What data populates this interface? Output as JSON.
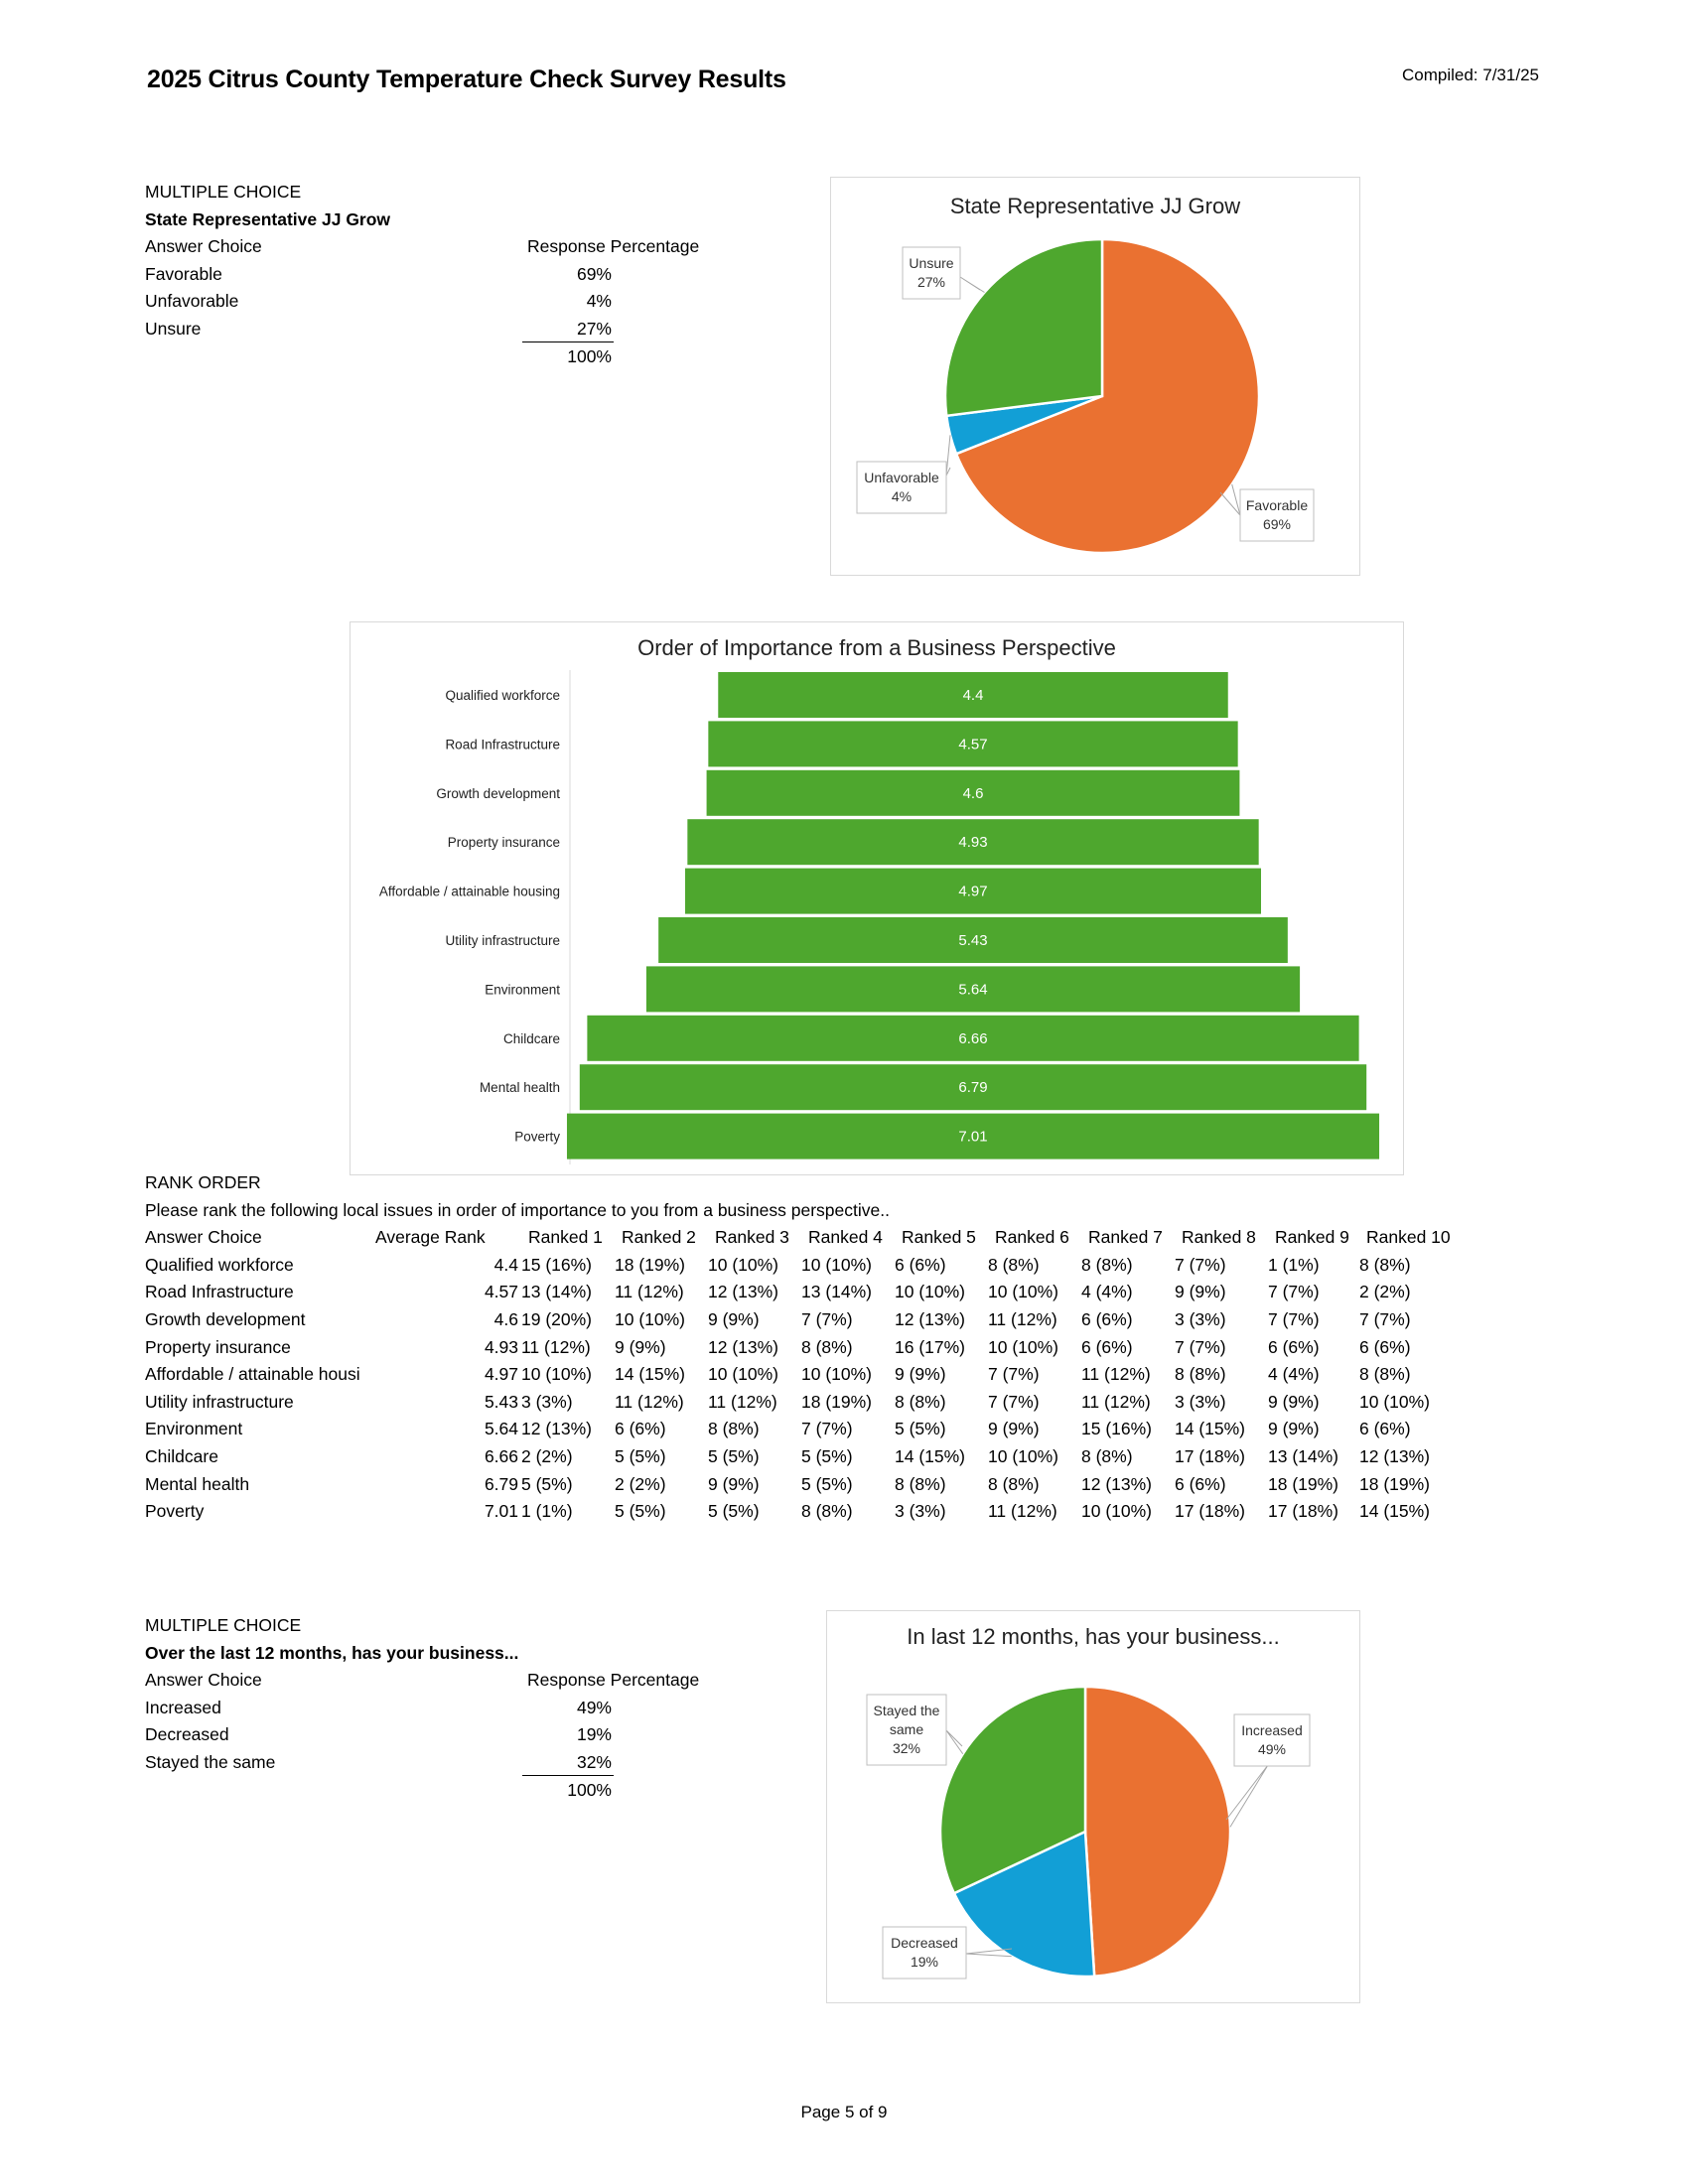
{
  "header": {
    "title": "2025 Citrus County Temperature Check Survey Results",
    "compiled": "Compiled: 7/31/25"
  },
  "section1": {
    "type_label": "MULTIPLE CHOICE",
    "question": "State Representative JJ Grow",
    "col_answer": "Answer Choice",
    "col_response": "Response Percentage",
    "rows": [
      {
        "label": "Favorable",
        "pct": "69%"
      },
      {
        "label": "Unfavorable",
        "pct": "4%"
      },
      {
        "label": "Unsure",
        "pct": "27%"
      }
    ],
    "total": "100%"
  },
  "section2": {
    "type_label": "RANK ORDER",
    "question": "Please rank the following local issues in order of importance to you from a business perspective..",
    "col_answer": "Answer Choice",
    "col_avg": "Average Rank",
    "rank_headers": [
      "Ranked 1",
      "Ranked 2",
      "Ranked 3",
      "Ranked 4",
      "Ranked 5",
      "Ranked 6",
      "Ranked 7",
      "Ranked 8",
      "Ranked 9",
      "Ranked 10"
    ],
    "rows": [
      {
        "label": "Qualified workforce",
        "avg": "4.4",
        "ranks": [
          "15 (16%)",
          "18 (19%)",
          "10 (10%)",
          "10 (10%)",
          "6 (6%)",
          "8 (8%)",
          "8 (8%)",
          "7 (7%)",
          "1 (1%)",
          "8 (8%)"
        ]
      },
      {
        "label": "Road Infrastructure",
        "avg": "4.57",
        "ranks": [
          "13 (14%)",
          "11 (12%)",
          "12 (13%)",
          "13 (14%)",
          "10 (10%)",
          "10 (10%)",
          "4 (4%)",
          "9 (9%)",
          "7 (7%)",
          "2 (2%)"
        ]
      },
      {
        "label": "Growth development",
        "avg": "4.6",
        "ranks": [
          "19 (20%)",
          "10 (10%)",
          "9 (9%)",
          "7 (7%)",
          "12 (13%)",
          "11 (12%)",
          "6 (6%)",
          "3 (3%)",
          "7 (7%)",
          "7 (7%)"
        ]
      },
      {
        "label": "Property insurance",
        "avg": "4.93",
        "ranks": [
          "11 (12%)",
          "9 (9%)",
          "12 (13%)",
          "8 (8%)",
          "16 (17%)",
          "10 (10%)",
          "6 (6%)",
          "7 (7%)",
          "6 (6%)",
          "6 (6%)"
        ]
      },
      {
        "label": "Affordable / attainable housi",
        "avg": "4.97",
        "ranks": [
          "10 (10%)",
          "14 (15%)",
          "10 (10%)",
          "10 (10%)",
          "9 (9%)",
          "7 (7%)",
          "11 (12%)",
          "8 (8%)",
          "4 (4%)",
          "8 (8%)"
        ]
      },
      {
        "label": "Utility infrastructure",
        "avg": "5.43",
        "ranks": [
          "3 (3%)",
          "11 (12%)",
          "11 (12%)",
          "18 (19%)",
          "8 (8%)",
          "7 (7%)",
          "11 (12%)",
          "3 (3%)",
          "9 (9%)",
          "10 (10%)"
        ]
      },
      {
        "label": "Environment",
        "avg": "5.64",
        "ranks": [
          "12 (13%)",
          "6 (6%)",
          "8 (8%)",
          "7 (7%)",
          "5 (5%)",
          "9 (9%)",
          "15 (16%)",
          "14 (15%)",
          "9 (9%)",
          "6 (6%)"
        ]
      },
      {
        "label": "Childcare",
        "avg": "6.66",
        "ranks": [
          "2 (2%)",
          "5 (5%)",
          "5 (5%)",
          "5 (5%)",
          "14 (15%)",
          "10 (10%)",
          "8 (8%)",
          "17 (18%)",
          "13 (14%)",
          "12 (13%)"
        ]
      },
      {
        "label": "Mental health",
        "avg": "6.79",
        "ranks": [
          "5 (5%)",
          "2 (2%)",
          "9 (9%)",
          "5 (5%)",
          "8 (8%)",
          "8 (8%)",
          "12 (13%)",
          "6 (6%)",
          "18 (19%)",
          "18 (19%)"
        ]
      },
      {
        "label": "Poverty",
        "avg": "7.01",
        "ranks": [
          "1 (1%)",
          "5 (5%)",
          "5 (5%)",
          "8 (8%)",
          "3 (3%)",
          "11 (12%)",
          "10 (10%)",
          "17 (18%)",
          "17 (18%)",
          "14 (15%)"
        ]
      }
    ]
  },
  "section3": {
    "type_label": "MULTIPLE CHOICE",
    "question": "Over the last 12 months, has your business...",
    "col_answer": "Answer Choice",
    "col_response": "Response Percentage",
    "rows": [
      {
        "label": "Increased",
        "pct": "49%"
      },
      {
        "label": "Decreased",
        "pct": "19%"
      },
      {
        "label": "Stayed the same",
        "pct": "32%"
      }
    ],
    "total": "100%"
  },
  "footer": {
    "page": "Page 5 of 9"
  },
  "colors": {
    "orange": "#ea7131",
    "blue": "#129fd6",
    "green": "#4ea72e"
  },
  "chart_data": [
    {
      "type": "pie",
      "title": "State Representative JJ Grow",
      "labels": [
        "Favorable",
        "Unfavorable",
        "Unsure"
      ],
      "values": [
        69,
        4,
        27
      ],
      "data_labels": [
        "69%",
        "4%",
        "27%"
      ],
      "colors": [
        "#ea7131",
        "#129fd6",
        "#4ea72e"
      ]
    },
    {
      "type": "bar",
      "orientation": "horizontal-funnel",
      "title": "Order of Importance from a Business Perspective",
      "categories": [
        "Qualified workforce",
        "Road Infrastructure",
        "Growth development",
        "Property insurance",
        "Affordable / attainable housing",
        "Utility infrastructure",
        "Environment",
        "Childcare",
        "Mental health",
        "Poverty"
      ],
      "values": [
        4.4,
        4.57,
        4.6,
        4.93,
        4.97,
        5.43,
        5.64,
        6.66,
        6.79,
        7.01
      ],
      "color": "#4ea72e"
    },
    {
      "type": "pie",
      "title": "In last 12 months, has your business...",
      "labels": [
        "Increased",
        "Decreased",
        "Stayed the same"
      ],
      "values": [
        49,
        19,
        32
      ],
      "data_labels": [
        "49%",
        "19%",
        "32%"
      ],
      "colors": [
        "#ea7131",
        "#129fd6",
        "#4ea72e"
      ]
    }
  ]
}
